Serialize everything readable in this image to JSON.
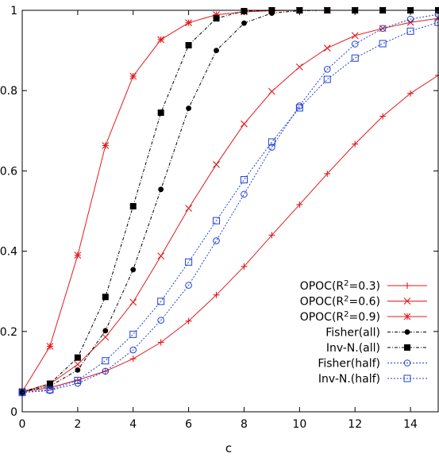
{
  "chart_data": {
    "type": "line",
    "title": "",
    "xlabel": "c",
    "ylabel": "",
    "xlim": [
      0,
      15
    ],
    "ylim": [
      0,
      1
    ],
    "xticks": [
      0,
      2,
      4,
      6,
      8,
      10,
      12,
      14
    ],
    "yticks": [
      0,
      0.2,
      0.4,
      0.6,
      0.8,
      1
    ],
    "x_tick_labels": [
      "0",
      "2",
      "4",
      "6",
      "8",
      "10",
      "12",
      "14"
    ],
    "y_tick_labels": [
      "0",
      "0.2",
      "0.4",
      "0.6",
      "0.8",
      "1"
    ],
    "grid": false,
    "legend_position": "bottom-right",
    "series": [
      {
        "name": "OPOC(R2=0.3)",
        "color": "#e41a1c",
        "marker": "plus",
        "dash": "solid",
        "x": [
          0,
          1,
          2,
          3,
          4,
          5,
          6,
          7,
          8,
          9,
          10,
          11,
          12,
          13,
          14,
          15
        ],
        "y": [
          0.05,
          0.06,
          0.079,
          0.101,
          0.132,
          0.173,
          0.226,
          0.291,
          0.362,
          0.44,
          0.516,
          0.593,
          0.667,
          0.736,
          0.793,
          0.838
        ]
      },
      {
        "name": "OPOC(R2=0.6)",
        "color": "#e41a1c",
        "marker": "x",
        "dash": "solid",
        "x": [
          0,
          1,
          2,
          3,
          4,
          5,
          6,
          7,
          8,
          9,
          10,
          11,
          12,
          13,
          14,
          15
        ],
        "y": [
          0.05,
          0.069,
          0.118,
          0.186,
          0.273,
          0.388,
          0.507,
          0.616,
          0.717,
          0.798,
          0.859,
          0.906,
          0.937,
          0.955,
          0.97,
          0.98
        ]
      },
      {
        "name": "OPOC(R2=0.9)",
        "color": "#e41a1c",
        "marker": "star",
        "dash": "solid",
        "x": [
          0,
          1,
          2,
          3,
          4,
          5,
          6,
          7,
          8,
          9,
          10,
          11,
          12,
          13,
          14,
          15
        ],
        "y": [
          0.05,
          0.163,
          0.39,
          0.663,
          0.836,
          0.927,
          0.969,
          0.989,
          0.996,
          0.999,
          1,
          1,
          1,
          1,
          1,
          1
        ]
      },
      {
        "name": "Fisher(all)",
        "color": "#000000",
        "marker": "circle-filled",
        "dash": "dotdash",
        "x": [
          0,
          1,
          2,
          3,
          4,
          5,
          6,
          7,
          8,
          9,
          10,
          11,
          12,
          13,
          14,
          15
        ],
        "y": [
          0.05,
          0.064,
          0.104,
          0.202,
          0.354,
          0.554,
          0.756,
          0.9,
          0.968,
          0.993,
          0.999,
          1,
          1,
          1,
          1,
          1
        ]
      },
      {
        "name": "Inv-N.(all)",
        "color": "#000000",
        "marker": "square-filled",
        "dash": "dotdash",
        "x": [
          0,
          1,
          2,
          3,
          4,
          5,
          6,
          7,
          8,
          9,
          10,
          11,
          12,
          13,
          14,
          15
        ],
        "y": [
          0.05,
          0.07,
          0.135,
          0.286,
          0.512,
          0.745,
          0.913,
          0.98,
          0.998,
          1,
          1,
          1,
          1,
          1,
          1,
          1
        ]
      },
      {
        "name": "Fisher(half)",
        "color": "#1f3fd6",
        "marker": "circle-open",
        "dash": "dotted",
        "x": [
          0,
          1,
          2,
          3,
          4,
          5,
          6,
          7,
          8,
          9,
          10,
          11,
          12,
          13,
          14,
          15
        ],
        "y": [
          0.048,
          0.053,
          0.071,
          0.101,
          0.154,
          0.228,
          0.315,
          0.426,
          0.542,
          0.659,
          0.762,
          0.853,
          0.916,
          0.955,
          0.978,
          0.99
        ]
      },
      {
        "name": "Inv-N.(half)",
        "color": "#1f3fd6",
        "marker": "square-open",
        "dash": "dotted",
        "x": [
          0,
          1,
          2,
          3,
          4,
          5,
          6,
          7,
          8,
          9,
          10,
          11,
          12,
          13,
          14,
          15
        ],
        "y": [
          0.048,
          0.055,
          0.078,
          0.127,
          0.193,
          0.275,
          0.373,
          0.476,
          0.578,
          0.672,
          0.757,
          0.828,
          0.881,
          0.917,
          0.948,
          0.97
        ]
      }
    ],
    "legend": [
      {
        "text": "OPOC(R",
        "sup": "2",
        "tail": "=0.3)"
      },
      {
        "text": "OPOC(R",
        "sup": "2",
        "tail": "=0.6)"
      },
      {
        "text": "OPOC(R",
        "sup": "2",
        "tail": "=0.9)"
      },
      {
        "text": "Fisher(all)",
        "sup": "",
        "tail": ""
      },
      {
        "text": "Inv-N.(all)",
        "sup": "",
        "tail": ""
      },
      {
        "text": "Fisher(half)",
        "sup": "",
        "tail": ""
      },
      {
        "text": "Inv-N.(half)",
        "sup": "",
        "tail": ""
      }
    ]
  }
}
